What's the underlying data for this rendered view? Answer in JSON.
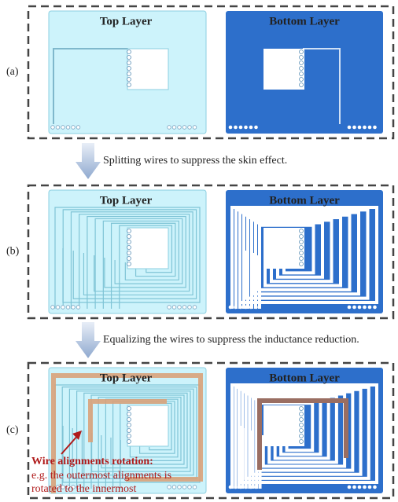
{
  "panels": [
    {
      "label": "(a)",
      "top_title": "Top Layer",
      "bottom_title": "Bottom Layer"
    },
    {
      "label": "(b)",
      "top_title": "Top Layer",
      "bottom_title": "Bottom Layer"
    },
    {
      "label": "(c)",
      "top_title": "Top Layer",
      "bottom_title": "Bottom Layer"
    }
  ],
  "steps": [
    {
      "text": "Splitting wires to suppress the skin effect."
    },
    {
      "text": "Equalizing the wires to suppress the inductance reduction."
    }
  ],
  "annotation": {
    "title": "Wire alignments rotation:",
    "lines": [
      "e.g. the outermost alignments is",
      "rotated to the innermost"
    ]
  }
}
